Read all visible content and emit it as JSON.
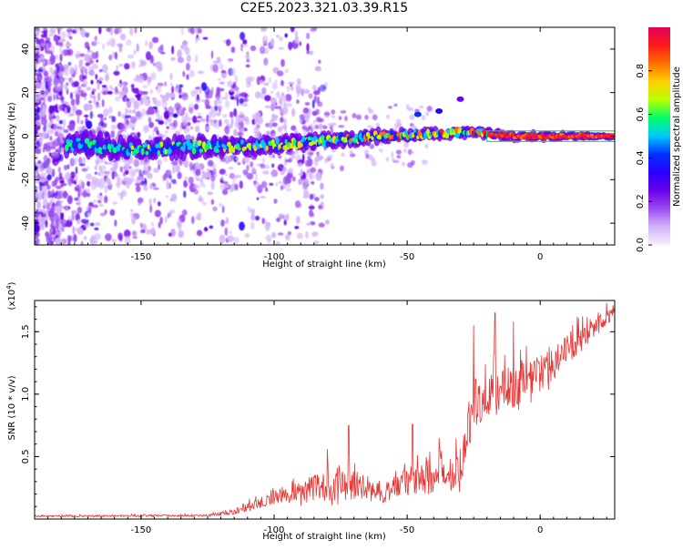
{
  "title": "C2E5.2023.321.03.39.R15",
  "colors": {
    "snr_line": "#e83535",
    "colormap": [
      "#f8f0ff",
      "#d2b4f8",
      "#9b4bf0",
      "#6b00e8",
      "#2a00ff",
      "#0030ff",
      "#00c8ff",
      "#00ff6a",
      "#b8ff00",
      "#ffd000",
      "#ff7000",
      "#ff1a1a",
      "#e0005a"
    ]
  },
  "chart_data": [
    {
      "type": "heatmap",
      "name": "spectrogram",
      "xlabel": "Height of straight line (km)",
      "ylabel": "Frequency (Hz)",
      "xlim": [
        -190,
        28
      ],
      "ylim": [
        -50,
        50
      ],
      "xticks": [
        -150,
        -100,
        -50,
        0
      ],
      "yticks": [
        -40,
        -20,
        0,
        20,
        40
      ],
      "ridge": [
        {
          "x": -170,
          "y": -4
        },
        {
          "x": -150,
          "y": -6
        },
        {
          "x": -130,
          "y": -5
        },
        {
          "x": -120,
          "y": -5
        },
        {
          "x": -100,
          "y": -4
        },
        {
          "x": -80,
          "y": -2
        },
        {
          "x": -60,
          "y": 0
        },
        {
          "x": -40,
          "y": 1
        },
        {
          "x": -25,
          "y": 2
        },
        {
          "x": -10,
          "y": 0
        },
        {
          "x": 0,
          "y": 0
        },
        {
          "x": 28,
          "y": 0
        }
      ],
      "colorbar": {
        "label": "Normalized spectral amplitude",
        "ticks": [
          "0.0",
          "0.2",
          "0.4",
          "0.6",
          "0.8"
        ],
        "range": [
          0,
          1
        ]
      }
    },
    {
      "type": "line",
      "name": "snr",
      "xlabel": "Height of straight line (km)",
      "ylabel": "SNR (10 * v/v)",
      "exponent_label": "(x10",
      "exponent_sup": "4",
      "exponent_close": ")",
      "xlim": [
        -190,
        28
      ],
      "ylim": [
        0,
        17500
      ],
      "xticks": [
        -150,
        -100,
        -50,
        0
      ],
      "yticks": [
        {
          "value": 5000,
          "label": "0.5"
        },
        {
          "value": 10000,
          "label": "1.0"
        },
        {
          "value": 15000,
          "label": "1.5"
        }
      ],
      "envelope": [
        {
          "x": -190,
          "base": 200,
          "amp": 150
        },
        {
          "x": -125,
          "base": 250,
          "amp": 200
        },
        {
          "x": -115,
          "base": 500,
          "amp": 500
        },
        {
          "x": -100,
          "base": 1500,
          "amp": 1200
        },
        {
          "x": -85,
          "base": 2000,
          "amp": 2500
        },
        {
          "x": -70,
          "base": 2300,
          "amp": 2600
        },
        {
          "x": -60,
          "base": 1700,
          "amp": 1700
        },
        {
          "x": -50,
          "base": 2500,
          "amp": 2500
        },
        {
          "x": -40,
          "base": 2800,
          "amp": 3000
        },
        {
          "x": -30,
          "base": 3500,
          "amp": 3500
        },
        {
          "x": -25,
          "base": 8500,
          "amp": 4500
        },
        {
          "x": -18,
          "base": 9000,
          "amp": 4500
        },
        {
          "x": -10,
          "base": 10000,
          "amp": 4000
        },
        {
          "x": 0,
          "base": 11000,
          "amp": 3500
        },
        {
          "x": 15,
          "base": 14000,
          "amp": 2500
        },
        {
          "x": 28,
          "base": 16500,
          "amp": 1000
        }
      ],
      "peaks": [
        {
          "x": -80,
          "y": 5600
        },
        {
          "x": -72,
          "y": 7500
        },
        {
          "x": -48,
          "y": 7600
        },
        {
          "x": -38,
          "y": 6500
        },
        {
          "x": -25,
          "y": 15500
        },
        {
          "x": -17,
          "y": 16500
        },
        {
          "x": -10,
          "y": 15800
        },
        {
          "x": 14,
          "y": 16200
        },
        {
          "x": 25,
          "y": 17300
        }
      ]
    }
  ]
}
